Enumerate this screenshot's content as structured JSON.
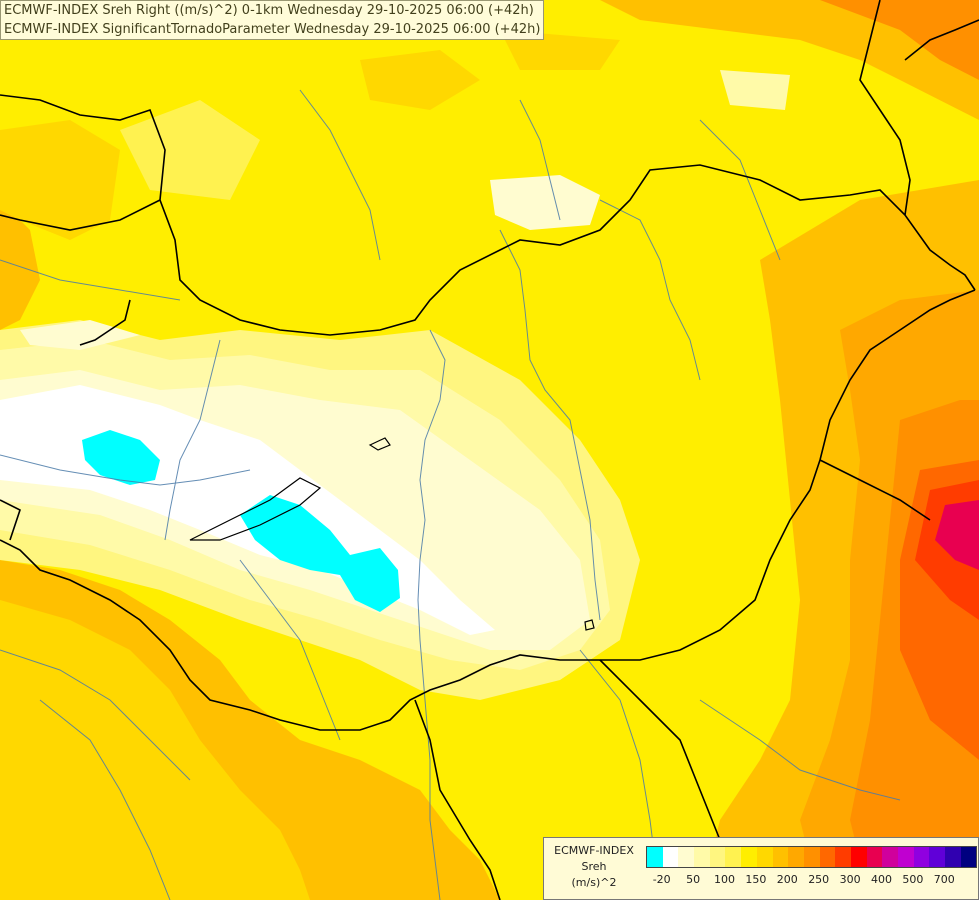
{
  "titles": {
    "line1": "ECMWF-INDEX Sreh Right ((m/s)^2) 0-1km Wednesday 29-10-2025 06:00 (+42h)",
    "line2": "ECMWF-INDEX SignificantTornadoParameter Wednesday 29-10-2025 06:00 (+42h)"
  },
  "legend": {
    "line1": "ECMWF-INDEX",
    "line2": "Sreh",
    "line3": "(m/s)^2",
    "colors": [
      "#00ffff",
      "#ffffff",
      "#fffcd0",
      "#fffaa8",
      "#fff680",
      "#fff250",
      "#ffee00",
      "#ffd800",
      "#ffc000",
      "#ffa800",
      "#ff9000",
      "#ff6800",
      "#ff3c00",
      "#ff0000",
      "#e80050",
      "#d0009c",
      "#c000d0",
      "#9000e0",
      "#6000d8",
      "#3000b0",
      "#000080"
    ],
    "tick_labels": [
      "-20",
      "50",
      "100",
      "150",
      "200",
      "250",
      "300",
      "400",
      "500",
      "700"
    ]
  },
  "map_layers": {
    "field": "sreh-shading",
    "borders": "country-borders",
    "rivers": "rivers"
  }
}
